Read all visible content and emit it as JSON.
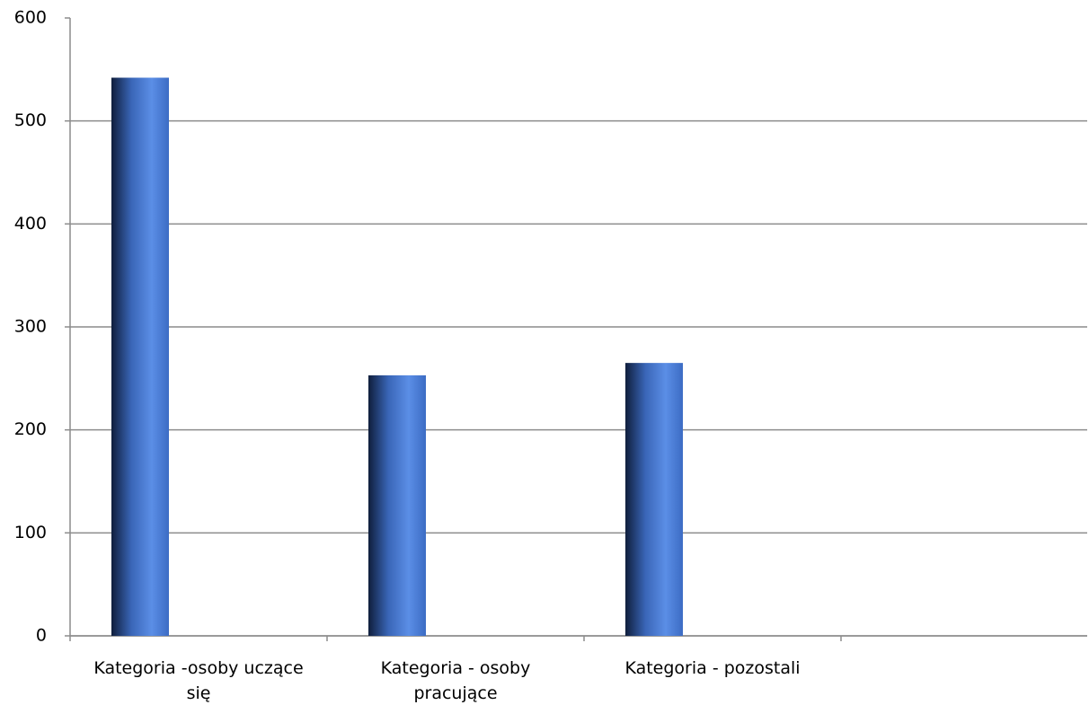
{
  "chart_data": {
    "type": "bar",
    "categories": [
      "Kategoria -osoby uczące się",
      "Kategoria - osoby pracujące",
      "Kategoria - pozostali",
      null
    ],
    "values": [
      542,
      253,
      265,
      null
    ],
    "color": "#4a7bd4",
    "ylim": [
      0,
      600
    ],
    "yticks": [
      0,
      100,
      200,
      300,
      400,
      500,
      600
    ],
    "grid": true
  }
}
